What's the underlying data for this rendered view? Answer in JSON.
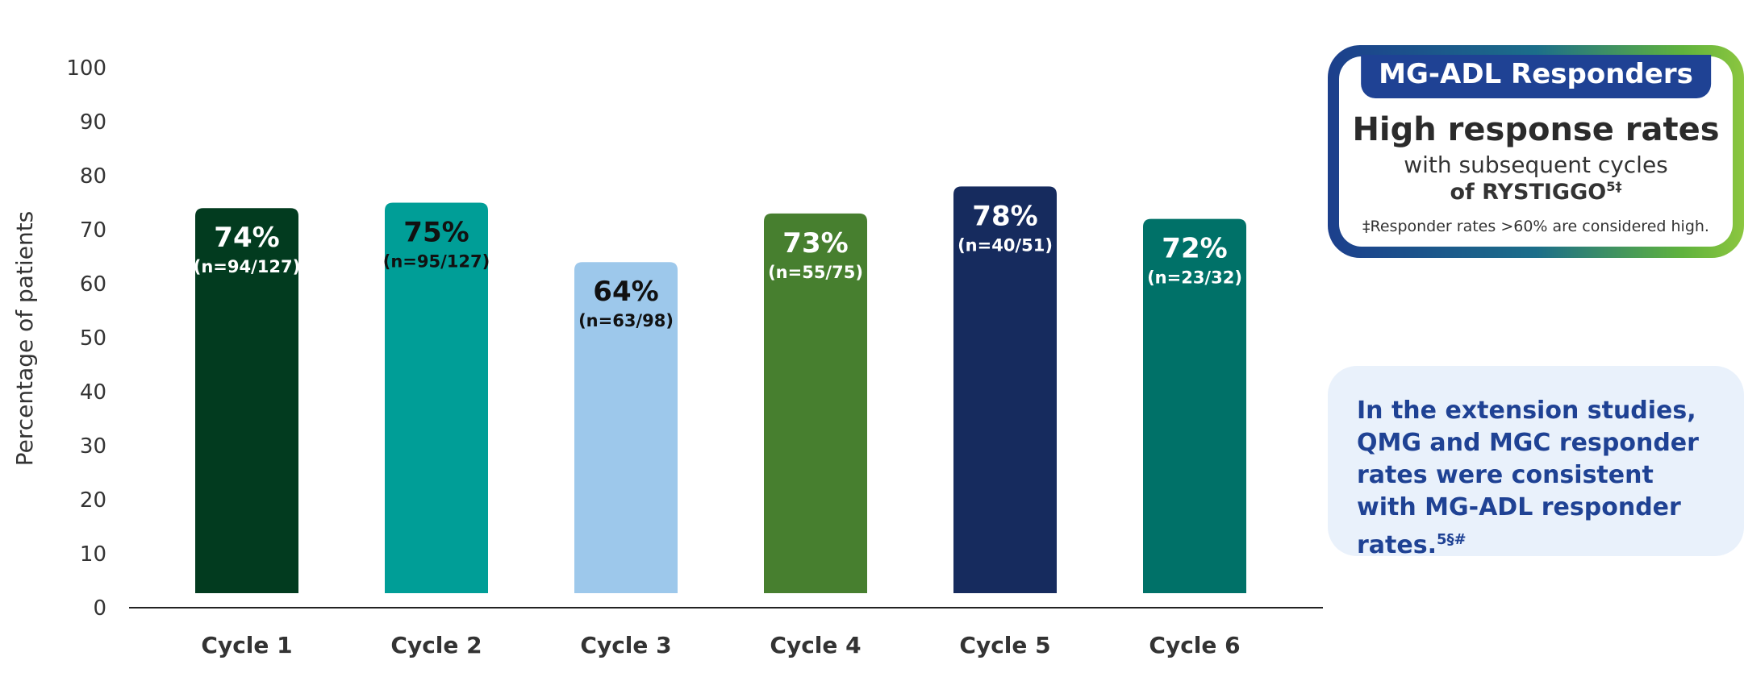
{
  "chart_data": {
    "type": "bar",
    "ylabel": "Percentage of patients",
    "xlabel": "",
    "ylim": [
      0,
      100
    ],
    "yticks": [
      0,
      10,
      20,
      30,
      40,
      50,
      60,
      70,
      80,
      90,
      100
    ],
    "grid": false,
    "categories": [
      "Cycle 1",
      "Cycle 2",
      "Cycle 3",
      "Cycle 4",
      "Cycle 5",
      "Cycle 6"
    ],
    "values": [
      74,
      75,
      64,
      73,
      78,
      72
    ],
    "value_labels": [
      "74%",
      "75%",
      "64%",
      "73%",
      "78%",
      "72%"
    ],
    "n_labels": [
      "(n=94/127)",
      "(n=95/127)",
      "(n=63/98)",
      "(n=55/75)",
      "(n=40/51)",
      "(n=23/32)"
    ],
    "bar_colors": [
      "#023b1f",
      "#009e97",
      "#9dc8eb",
      "#477f2f",
      "#162b5e",
      "#007168"
    ],
    "label_colors": [
      "#ffffff",
      "#111111",
      "#111111",
      "#ffffff",
      "#ffffff",
      "#ffffff"
    ]
  },
  "callout": {
    "badge": "MG-ADL Responders",
    "headline": "High response rates",
    "line1": "with subsequent cycles",
    "line2": "of RYSTIGGO",
    "line2_sup": "5‡",
    "footnote": "‡Responder rates >60% are considered high."
  },
  "note": {
    "text": "In the extension studies, QMG and MGC responder rates were consistent with MG-ADL responder rates.",
    "sup": "5§#"
  },
  "colors": {
    "badge": "#1f4294",
    "note_bg": "#e9f1fb",
    "note_text": "#1f4294"
  }
}
